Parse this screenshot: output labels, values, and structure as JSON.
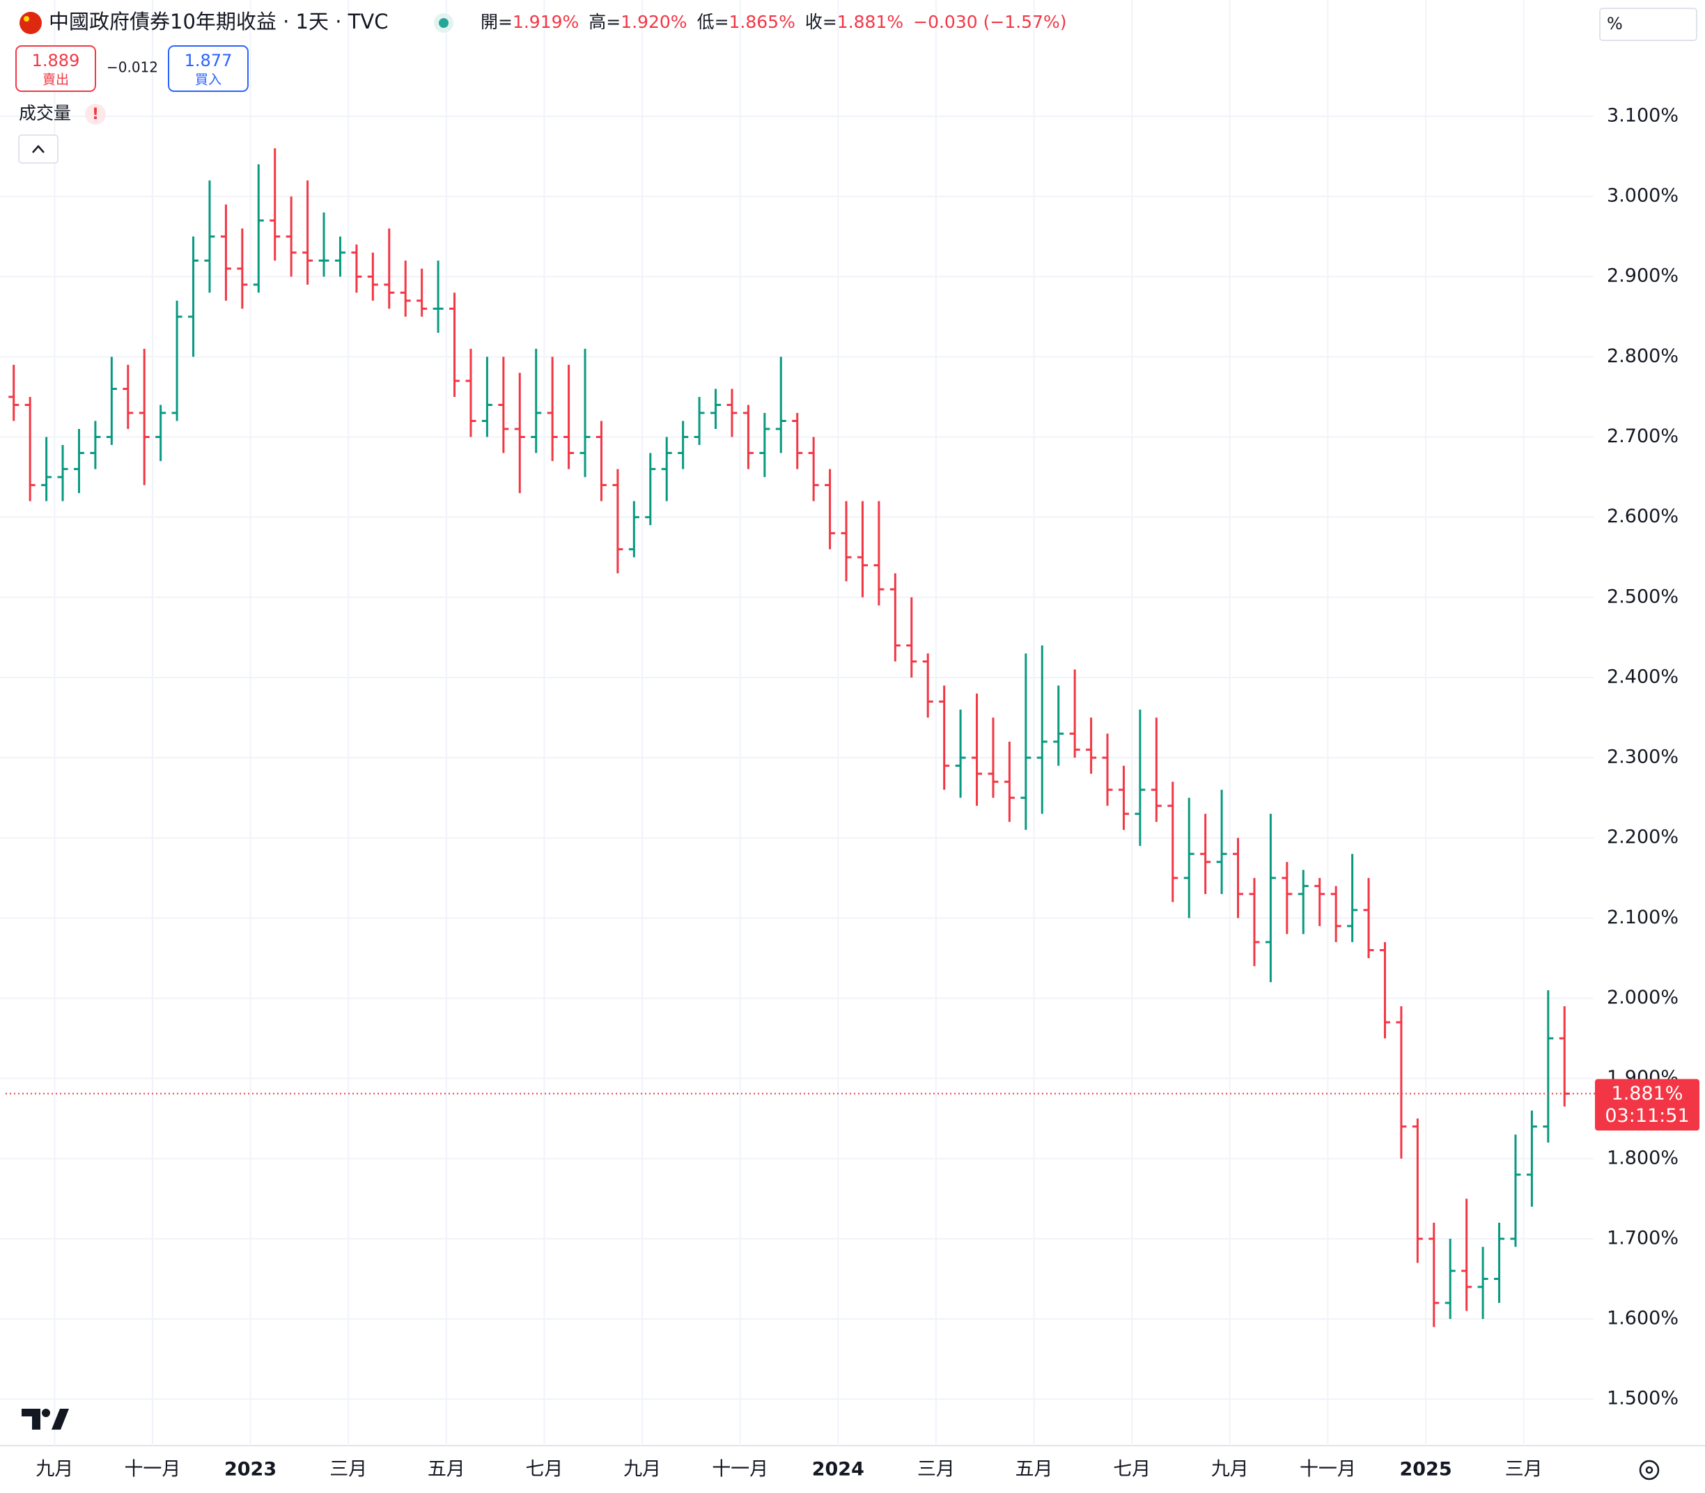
{
  "chart_data": {
    "type": "ohlc",
    "title": "中國政府債券10年期收益 · 1天 · TVC",
    "quote": [
      {
        "label": "開=",
        "value": "1.919%"
      },
      {
        "label": "高=",
        "value": "1.920%"
      },
      {
        "label": "低=",
        "value": "1.865%"
      },
      {
        "label": "收=",
        "value": "1.881%"
      }
    ],
    "change": "−0.030 (−1.57%)",
    "trade": {
      "sell_price": "1.889",
      "sell_label": "賣出",
      "spread": "−0.012",
      "buy_price": "1.877",
      "buy_label": "買入"
    },
    "volume_label": "成交量",
    "volume_warning": "!",
    "axis_unit": "%",
    "up_color": "#089981",
    "down_color": "#f23645",
    "grid": true,
    "categories": [
      null,
      null,
      null,
      "九月",
      null,
      null,
      null,
      null,
      null,
      "十一月",
      null,
      null,
      null,
      null,
      null,
      "2023",
      null,
      null,
      null,
      null,
      null,
      "三月",
      null,
      null,
      null,
      null,
      null,
      "五月",
      null,
      null,
      null,
      null,
      null,
      "七月",
      null,
      null,
      null,
      null,
      null,
      "九月",
      null,
      null,
      null,
      null,
      null,
      "十一月",
      null,
      null,
      null,
      null,
      null,
      "2024",
      null,
      null,
      null,
      null,
      null,
      "三月",
      null,
      null,
      null,
      null,
      null,
      "五月",
      null,
      null,
      null,
      null,
      null,
      "七月",
      null,
      null,
      null,
      null,
      null,
      "九月",
      null,
      null,
      null,
      null,
      null,
      "十一月",
      null,
      null,
      null,
      null,
      null,
      "2025",
      null,
      null,
      null,
      null,
      null,
      "三月",
      null,
      null
    ],
    "ohlc": [
      [
        2.75,
        2.79,
        2.72,
        2.74
      ],
      [
        2.74,
        2.75,
        2.62,
        2.64
      ],
      [
        2.64,
        2.7,
        2.62,
        2.65
      ],
      [
        2.65,
        2.69,
        2.62,
        2.66
      ],
      [
        2.66,
        2.71,
        2.63,
        2.68
      ],
      [
        2.68,
        2.72,
        2.66,
        2.7
      ],
      [
        2.7,
        2.8,
        2.69,
        2.76
      ],
      [
        2.76,
        2.79,
        2.71,
        2.73
      ],
      [
        2.73,
        2.81,
        2.64,
        2.7
      ],
      [
        2.7,
        2.74,
        2.67,
        2.73
      ],
      [
        2.73,
        2.87,
        2.72,
        2.85
      ],
      [
        2.85,
        2.95,
        2.8,
        2.92
      ],
      [
        2.92,
        3.02,
        2.88,
        2.95
      ],
      [
        2.95,
        2.99,
        2.87,
        2.91
      ],
      [
        2.91,
        2.96,
        2.86,
        2.89
      ],
      [
        2.89,
        3.04,
        2.88,
        2.97
      ],
      [
        2.97,
        3.06,
        2.92,
        2.95
      ],
      [
        2.95,
        3.0,
        2.9,
        2.93
      ],
      [
        2.93,
        3.02,
        2.89,
        2.92
      ],
      [
        2.92,
        2.98,
        2.9,
        2.92
      ],
      [
        2.92,
        2.95,
        2.9,
        2.93
      ],
      [
        2.93,
        2.94,
        2.88,
        2.9
      ],
      [
        2.9,
        2.93,
        2.87,
        2.89
      ],
      [
        2.89,
        2.96,
        2.86,
        2.88
      ],
      [
        2.88,
        2.92,
        2.85,
        2.87
      ],
      [
        2.87,
        2.91,
        2.85,
        2.86
      ],
      [
        2.86,
        2.92,
        2.83,
        2.86
      ],
      [
        2.86,
        2.88,
        2.75,
        2.77
      ],
      [
        2.77,
        2.81,
        2.7,
        2.72
      ],
      [
        2.72,
        2.8,
        2.7,
        2.74
      ],
      [
        2.74,
        2.8,
        2.68,
        2.71
      ],
      [
        2.71,
        2.78,
        2.63,
        2.7
      ],
      [
        2.7,
        2.81,
        2.68,
        2.73
      ],
      [
        2.73,
        2.8,
        2.67,
        2.7
      ],
      [
        2.7,
        2.79,
        2.66,
        2.68
      ],
      [
        2.68,
        2.81,
        2.65,
        2.7
      ],
      [
        2.7,
        2.72,
        2.62,
        2.64
      ],
      [
        2.64,
        2.66,
        2.53,
        2.56
      ],
      [
        2.56,
        2.62,
        2.55,
        2.6
      ],
      [
        2.6,
        2.68,
        2.59,
        2.66
      ],
      [
        2.66,
        2.7,
        2.62,
        2.68
      ],
      [
        2.68,
        2.72,
        2.66,
        2.7
      ],
      [
        2.7,
        2.75,
        2.69,
        2.73
      ],
      [
        2.73,
        2.76,
        2.71,
        2.74
      ],
      [
        2.74,
        2.76,
        2.7,
        2.73
      ],
      [
        2.73,
        2.74,
        2.66,
        2.68
      ],
      [
        2.68,
        2.73,
        2.65,
        2.71
      ],
      [
        2.71,
        2.8,
        2.68,
        2.72
      ],
      [
        2.72,
        2.73,
        2.66,
        2.68
      ],
      [
        2.68,
        2.7,
        2.62,
        2.64
      ],
      [
        2.64,
        2.66,
        2.56,
        2.58
      ],
      [
        2.58,
        2.62,
        2.52,
        2.55
      ],
      [
        2.55,
        2.62,
        2.5,
        2.54
      ],
      [
        2.54,
        2.62,
        2.49,
        2.51
      ],
      [
        2.51,
        2.53,
        2.42,
        2.44
      ],
      [
        2.44,
        2.5,
        2.4,
        2.42
      ],
      [
        2.42,
        2.43,
        2.35,
        2.37
      ],
      [
        2.37,
        2.39,
        2.26,
        2.29
      ],
      [
        2.29,
        2.36,
        2.25,
        2.3
      ],
      [
        2.3,
        2.38,
        2.24,
        2.28
      ],
      [
        2.28,
        2.35,
        2.25,
        2.27
      ],
      [
        2.27,
        2.32,
        2.22,
        2.25
      ],
      [
        2.25,
        2.43,
        2.21,
        2.3
      ],
      [
        2.3,
        2.44,
        2.23,
        2.32
      ],
      [
        2.32,
        2.39,
        2.29,
        2.33
      ],
      [
        2.33,
        2.41,
        2.3,
        2.31
      ],
      [
        2.31,
        2.35,
        2.28,
        2.3
      ],
      [
        2.3,
        2.33,
        2.24,
        2.26
      ],
      [
        2.26,
        2.29,
        2.21,
        2.23
      ],
      [
        2.23,
        2.36,
        2.19,
        2.26
      ],
      [
        2.26,
        2.35,
        2.22,
        2.24
      ],
      [
        2.24,
        2.27,
        2.12,
        2.15
      ],
      [
        2.15,
        2.25,
        2.1,
        2.18
      ],
      [
        2.18,
        2.23,
        2.13,
        2.17
      ],
      [
        2.17,
        2.26,
        2.13,
        2.18
      ],
      [
        2.18,
        2.2,
        2.1,
        2.13
      ],
      [
        2.13,
        2.15,
        2.04,
        2.07
      ],
      [
        2.07,
        2.23,
        2.02,
        2.15
      ],
      [
        2.15,
        2.17,
        2.08,
        2.13
      ],
      [
        2.13,
        2.16,
        2.08,
        2.14
      ],
      [
        2.14,
        2.15,
        2.09,
        2.13
      ],
      [
        2.13,
        2.14,
        2.07,
        2.09
      ],
      [
        2.09,
        2.18,
        2.07,
        2.11
      ],
      [
        2.11,
        2.15,
        2.05,
        2.06
      ],
      [
        2.06,
        2.07,
        1.95,
        1.97
      ],
      [
        1.97,
        1.99,
        1.8,
        1.84
      ],
      [
        1.84,
        1.85,
        1.67,
        1.7
      ],
      [
        1.7,
        1.72,
        1.59,
        1.62
      ],
      [
        1.62,
        1.7,
        1.6,
        1.66
      ],
      [
        1.66,
        1.75,
        1.61,
        1.64
      ],
      [
        1.64,
        1.69,
        1.6,
        1.65
      ],
      [
        1.65,
        1.72,
        1.62,
        1.7
      ],
      [
        1.7,
        1.83,
        1.69,
        1.78
      ],
      [
        1.78,
        1.86,
        1.74,
        1.84
      ],
      [
        1.84,
        2.01,
        1.82,
        1.95
      ],
      [
        1.95,
        1.99,
        1.865,
        1.881
      ]
    ],
    "ylim": [
      1.442,
      3.245
    ],
    "yticks": [
      {
        "value": 1.5,
        "label": "1.500%"
      },
      {
        "value": 1.6,
        "label": "1.600%"
      },
      {
        "value": 1.7,
        "label": "1.700%"
      },
      {
        "value": 1.8,
        "label": "1.800%"
      },
      {
        "value": 1.9,
        "label": "1.900%"
      },
      {
        "value": 2.0,
        "label": "2.000%"
      },
      {
        "value": 2.1,
        "label": "2.100%"
      },
      {
        "value": 2.2,
        "label": "2.200%"
      },
      {
        "value": 2.3,
        "label": "2.300%"
      },
      {
        "value": 2.4,
        "label": "2.400%"
      },
      {
        "value": 2.5,
        "label": "2.500%"
      },
      {
        "value": 2.6,
        "label": "2.600%"
      },
      {
        "value": 2.7,
        "label": "2.700%"
      },
      {
        "value": 2.8,
        "label": "2.800%"
      },
      {
        "value": 2.9,
        "label": "2.900%"
      },
      {
        "value": 3.0,
        "label": "3.000%"
      },
      {
        "value": 3.1,
        "label": "3.100%"
      }
    ],
    "last_price": {
      "value": 1.881,
      "label": "1.881%",
      "countdown": "03:11:51"
    }
  }
}
